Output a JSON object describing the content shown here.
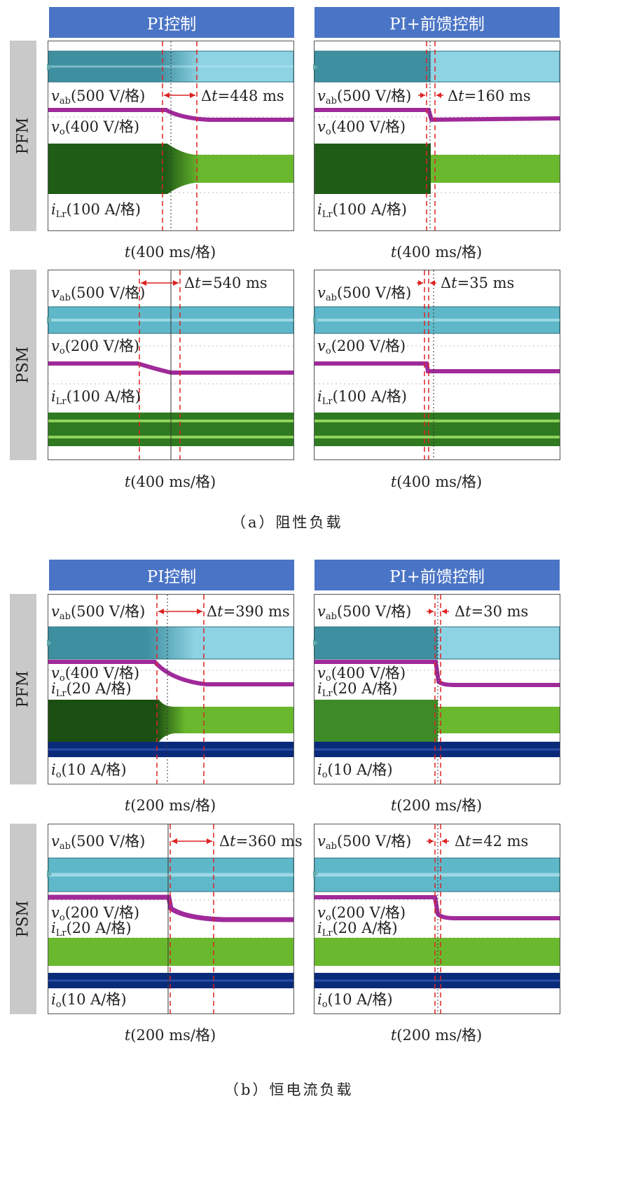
{
  "headers": {
    "pi": "PI控制",
    "pi_ff": "PI+前馈控制"
  },
  "rows": {
    "pfm": "PFM",
    "psm": "PSM"
  },
  "captions": {
    "a": "（a）阻性负载",
    "b": "（b）恒电流负载"
  },
  "labels": {
    "vab500": "(500 V/格)",
    "vo400": "(400 V/格)",
    "vo200": "(200 V/格)",
    "ilr100": "(100 A/格)",
    "ilr20": "(20 A/格)",
    "io10": "(10 A/格)",
    "sym_v": "v",
    "sym_i": "i",
    "sub_ab": "ab",
    "sub_o": "o",
    "sub_lr": "Lr",
    "t400": "(400 ms/格)",
    "t200": "(200 ms/格)",
    "t": "t",
    "delta": "Δ"
  },
  "dts": {
    "a_pfm_pi": "=448 ms",
    "a_pfm_ff": "=160 ms",
    "a_psm_pi": "=540 ms",
    "a_psm_ff": "=35 ms",
    "b_pfm_pi": "=390 ms",
    "b_pfm_ff": "=30 ms",
    "b_psm_pi": "=360 ms",
    "b_psm_ff": "=42 ms"
  },
  "colors": {
    "header": "#4a74c5",
    "cyan": "#5fb8c9",
    "cyan_light": "#8ed3e3",
    "magenta": "#a02a9a",
    "green_dark": "#1f5c16",
    "green": "#6ab82e",
    "navy": "#0a2a7a",
    "red": "#d22"
  }
}
